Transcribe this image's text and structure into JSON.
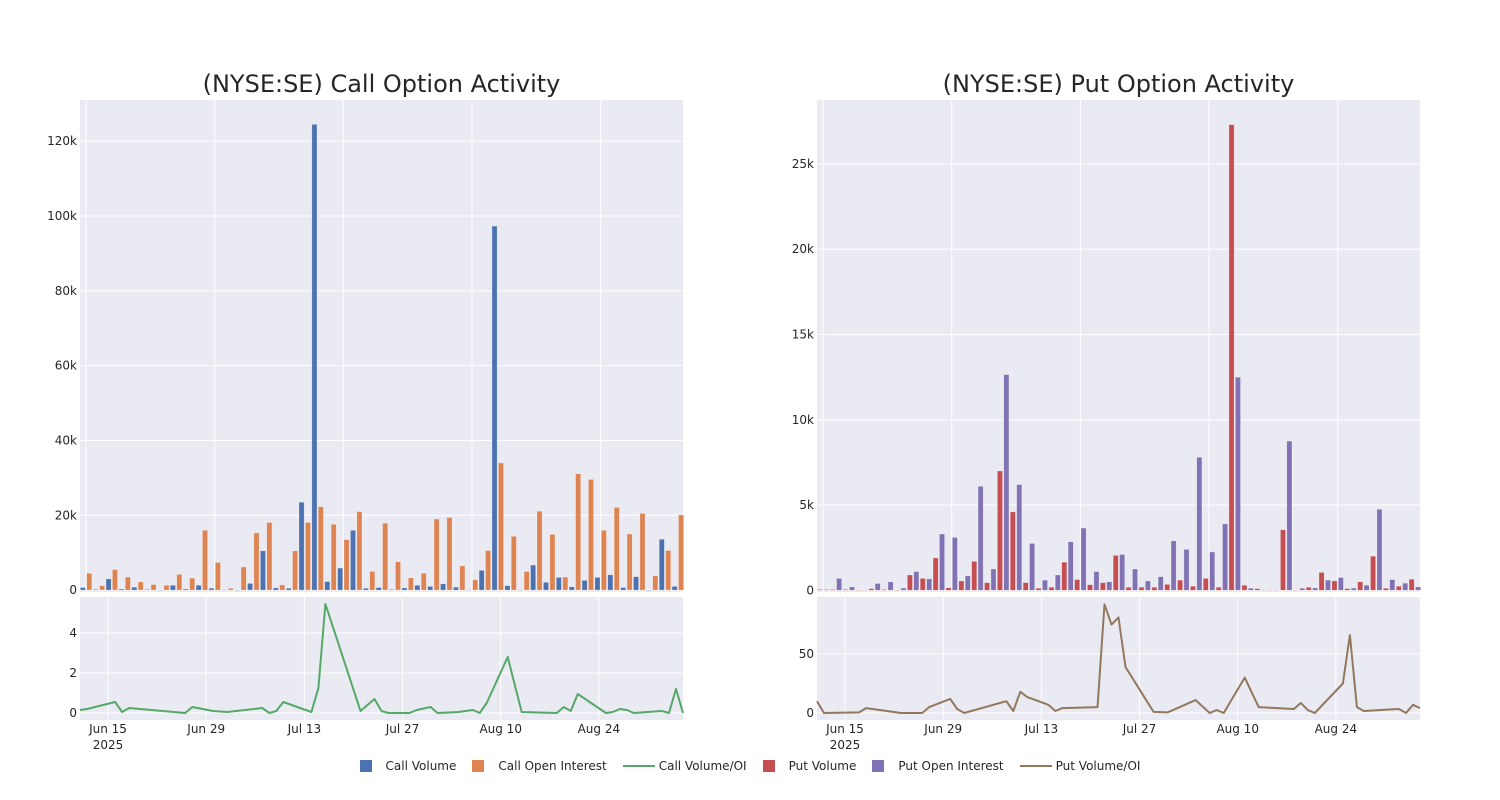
{
  "colors": {
    "call_volume": "#4c72b0",
    "call_oi": "#dd8452",
    "call_ratio": "#55a868",
    "put_volume": "#c44e52",
    "put_oi": "#8172b3",
    "put_ratio": "#937860",
    "plot_bg": "#eaeaf2",
    "grid": "#ffffff"
  },
  "legend": [
    "Call Volume",
    "Call Open Interest",
    "Call Volume/OI",
    "Put Volume",
    "Put Open Interest",
    "Put Volume/OI"
  ],
  "chart_data": [
    {
      "title": "(NYSE:SE) Call Option Activity",
      "type": "bar",
      "panel": "top",
      "ylim": [
        -0.5,
        131
      ],
      "y_ticks": [
        0,
        20,
        40,
        60,
        80,
        100,
        120
      ],
      "y_tick_labels": [
        "0",
        "20k",
        "40k",
        "60k",
        "80k",
        "100k",
        "120k"
      ],
      "unit": "thousands",
      "series": [
        {
          "name": "Call Volume",
          "values": [
            0.7,
            0.2,
            3,
            0.3,
            0.8,
            0.2,
            0,
            1.3,
            0.3,
            1.3,
            0.5,
            0.1,
            0,
            1.8,
            10.5,
            0.6,
            0.5,
            23.5,
            124.5,
            2.3,
            5.9,
            16,
            0.5,
            0.7,
            0.2,
            0.6,
            1.3,
            1,
            1.7,
            0.8,
            0.1,
            5.3,
            97.3,
            1.2,
            0.1,
            6.7,
            2.1,
            3.4,
            0.9,
            2.6,
            3.4,
            4.1,
            0.7,
            3.6,
            0,
            13.6,
            1
          ]
        },
        {
          "name": "Call Open Interest",
          "values": [
            4.5,
            1.2,
            5.5,
            3.5,
            2.2,
            1.5,
            1.3,
            4.2,
            3.2,
            16,
            7.4,
            0.5,
            6.2,
            15.3,
            18.1,
            1.4,
            10.5,
            18.1,
            22.3,
            17.6,
            13.5,
            21,
            5,
            17.9,
            7.6,
            3.3,
            4.5,
            19,
            19.4,
            6.5,
            2.8,
            10.6,
            34,
            14.4,
            5,
            21.1,
            14.9,
            3.5,
            31.1,
            29.6,
            16,
            22.1,
            15,
            20.5,
            3.8,
            10.6,
            20.1
          ]
        }
      ]
    },
    {
      "title": "",
      "type": "line",
      "panel": "bottom",
      "name": "Call Volume/OI",
      "ylim": [
        -0.35,
        5.8
      ],
      "y_ticks": [
        0,
        2,
        4
      ],
      "x_range": [
        "2025-06-11",
        "2025-09-05"
      ],
      "x_ticks": [
        "Jun 15",
        "Jun 29",
        "Jul 13",
        "Jul 27",
        "Aug 10",
        "Aug 24"
      ],
      "x_tick_year": "2025",
      "points": [
        [
          "2025-06-11",
          0.15
        ],
        [
          "2025-06-12",
          0.2
        ],
        [
          "2025-06-16",
          0.55
        ],
        [
          "2025-06-17",
          0.05
        ],
        [
          "2025-06-18",
          0.25
        ],
        [
          "2025-06-26",
          0
        ],
        [
          "2025-06-27",
          0.3
        ],
        [
          "2025-06-30",
          0.1
        ],
        [
          "2025-07-02",
          0.05
        ],
        [
          "2025-07-07",
          0.25
        ],
        [
          "2025-07-08",
          0
        ],
        [
          "2025-07-09",
          0.1
        ],
        [
          "2025-07-10",
          0.55
        ],
        [
          "2025-07-14",
          0.05
        ],
        [
          "2025-07-15",
          1.25
        ],
        [
          "2025-07-16",
          5.45
        ],
        [
          "2025-07-21",
          0.1
        ],
        [
          "2025-07-23",
          0.7
        ],
        [
          "2025-07-24",
          0.1
        ],
        [
          "2025-07-25",
          0
        ],
        [
          "2025-07-28",
          0
        ],
        [
          "2025-07-29",
          0.15
        ],
        [
          "2025-07-31",
          0.3
        ],
        [
          "2025-08-01",
          0
        ],
        [
          "2025-08-04",
          0.05
        ],
        [
          "2025-08-06",
          0.15
        ],
        [
          "2025-08-07",
          0
        ],
        [
          "2025-08-08",
          0.5
        ],
        [
          "2025-08-11",
          2.8
        ],
        [
          "2025-08-13",
          0.05
        ],
        [
          "2025-08-18",
          0
        ],
        [
          "2025-08-19",
          0.3
        ],
        [
          "2025-08-20",
          0.1
        ],
        [
          "2025-08-21",
          0.95
        ],
        [
          "2025-08-25",
          0
        ],
        [
          "2025-08-26",
          0.05
        ],
        [
          "2025-08-27",
          0.2
        ],
        [
          "2025-08-28",
          0.15
        ],
        [
          "2025-08-29",
          0
        ],
        [
          "2025-09-02",
          0.1
        ],
        [
          "2025-09-03",
          0
        ],
        [
          "2025-09-04",
          1.2
        ],
        [
          "2025-09-05",
          0
        ]
      ]
    },
    {
      "title": "(NYSE:SE) Put Option Activity",
      "type": "bar",
      "panel": "top",
      "ylim": [
        -0.1,
        28.75
      ],
      "y_ticks": [
        0,
        5,
        10,
        15,
        20,
        25
      ],
      "y_tick_labels": [
        "0",
        "5k",
        "10k",
        "15k",
        "20k",
        "25k"
      ],
      "unit": "thousands",
      "series": [
        {
          "name": "Put Volume",
          "values": [
            0.05,
            0.05,
            0.05,
            0.02,
            0.1,
            0.05,
            0,
            0.9,
            0.7,
            1.9,
            0.15,
            0.55,
            1.7,
            0.45,
            7.0,
            4.6,
            0.45,
            0.12,
            0.18,
            1.65,
            0.63,
            0.33,
            0.45,
            2.05,
            0.18,
            0.18,
            0.18,
            0.35,
            0.6,
            0.24,
            0.7,
            0.18,
            27.3,
            0.3,
            0.1,
            0.02,
            3.55,
            0,
            0.18,
            1.05,
            0.55,
            0.1,
            0.5,
            2.0,
            0.12,
            0.24,
            0.65
          ]
        },
        {
          "name": "Put Open Interest",
          "values": [
            0.05,
            0.7,
            0.2,
            0.02,
            0.4,
            0.5,
            0.13,
            1.1,
            0.67,
            3.3,
            3.1,
            0.85,
            6.1,
            1.25,
            12.65,
            6.2,
            2.75,
            0.6,
            0.9,
            2.85,
            3.65,
            1.1,
            0.5,
            2.1,
            1.25,
            0.55,
            0.8,
            2.9,
            2.4,
            7.8,
            2.25,
            3.9,
            12.5,
            0.13,
            0.03,
            0.02,
            8.75,
            0.12,
            0.14,
            0.6,
            0.75,
            0.13,
            0.3,
            4.75,
            0.63,
            0.42,
            0.2
          ]
        }
      ]
    },
    {
      "title": "",
      "type": "line",
      "panel": "bottom",
      "name": "Put Volume/OI",
      "ylim": [
        -5.9,
        98.3
      ],
      "y_ticks": [
        0,
        50
      ],
      "x_range": [
        "2025-06-11",
        "2025-09-05"
      ],
      "x_ticks": [
        "Jun 15",
        "Jun 29",
        "Jul 13",
        "Jul 27",
        "Aug 10",
        "Aug 24"
      ],
      "x_tick_year": "2025",
      "points": [
        [
          "2025-06-11",
          10
        ],
        [
          "2025-06-12",
          0
        ],
        [
          "2025-06-17",
          0.5
        ],
        [
          "2025-06-18",
          4.2
        ],
        [
          "2025-06-23",
          0
        ],
        [
          "2025-06-26",
          0
        ],
        [
          "2025-06-27",
          5
        ],
        [
          "2025-06-30",
          12
        ],
        [
          "2025-07-01",
          3.4
        ],
        [
          "2025-07-02",
          0
        ],
        [
          "2025-07-08",
          10
        ],
        [
          "2025-07-09",
          1.7
        ],
        [
          "2025-07-10",
          18
        ],
        [
          "2025-07-11",
          13.5
        ],
        [
          "2025-07-14",
          7
        ],
        [
          "2025-07-15",
          1.7
        ],
        [
          "2025-07-16",
          4.2
        ],
        [
          "2025-07-21",
          5
        ],
        [
          "2025-07-22",
          92
        ],
        [
          "2025-07-23",
          75
        ],
        [
          "2025-07-24",
          81
        ],
        [
          "2025-07-25",
          39
        ],
        [
          "2025-07-29",
          1
        ],
        [
          "2025-07-31",
          0.5
        ],
        [
          "2025-08-04",
          11
        ],
        [
          "2025-08-06",
          0
        ],
        [
          "2025-08-07",
          2.5
        ],
        [
          "2025-08-08",
          0
        ],
        [
          "2025-08-11",
          30
        ],
        [
          "2025-08-13",
          5
        ],
        [
          "2025-08-18",
          3.4
        ],
        [
          "2025-08-19",
          8.5
        ],
        [
          "2025-08-20",
          2.5
        ],
        [
          "2025-08-21",
          0
        ],
        [
          "2025-08-25",
          25
        ],
        [
          "2025-08-26",
          66
        ],
        [
          "2025-08-27",
          5
        ],
        [
          "2025-08-28",
          1.7
        ],
        [
          "2025-09-02",
          3.4
        ],
        [
          "2025-09-03",
          0
        ],
        [
          "2025-09-04",
          7
        ],
        [
          "2025-09-05",
          4.2
        ]
      ]
    }
  ]
}
